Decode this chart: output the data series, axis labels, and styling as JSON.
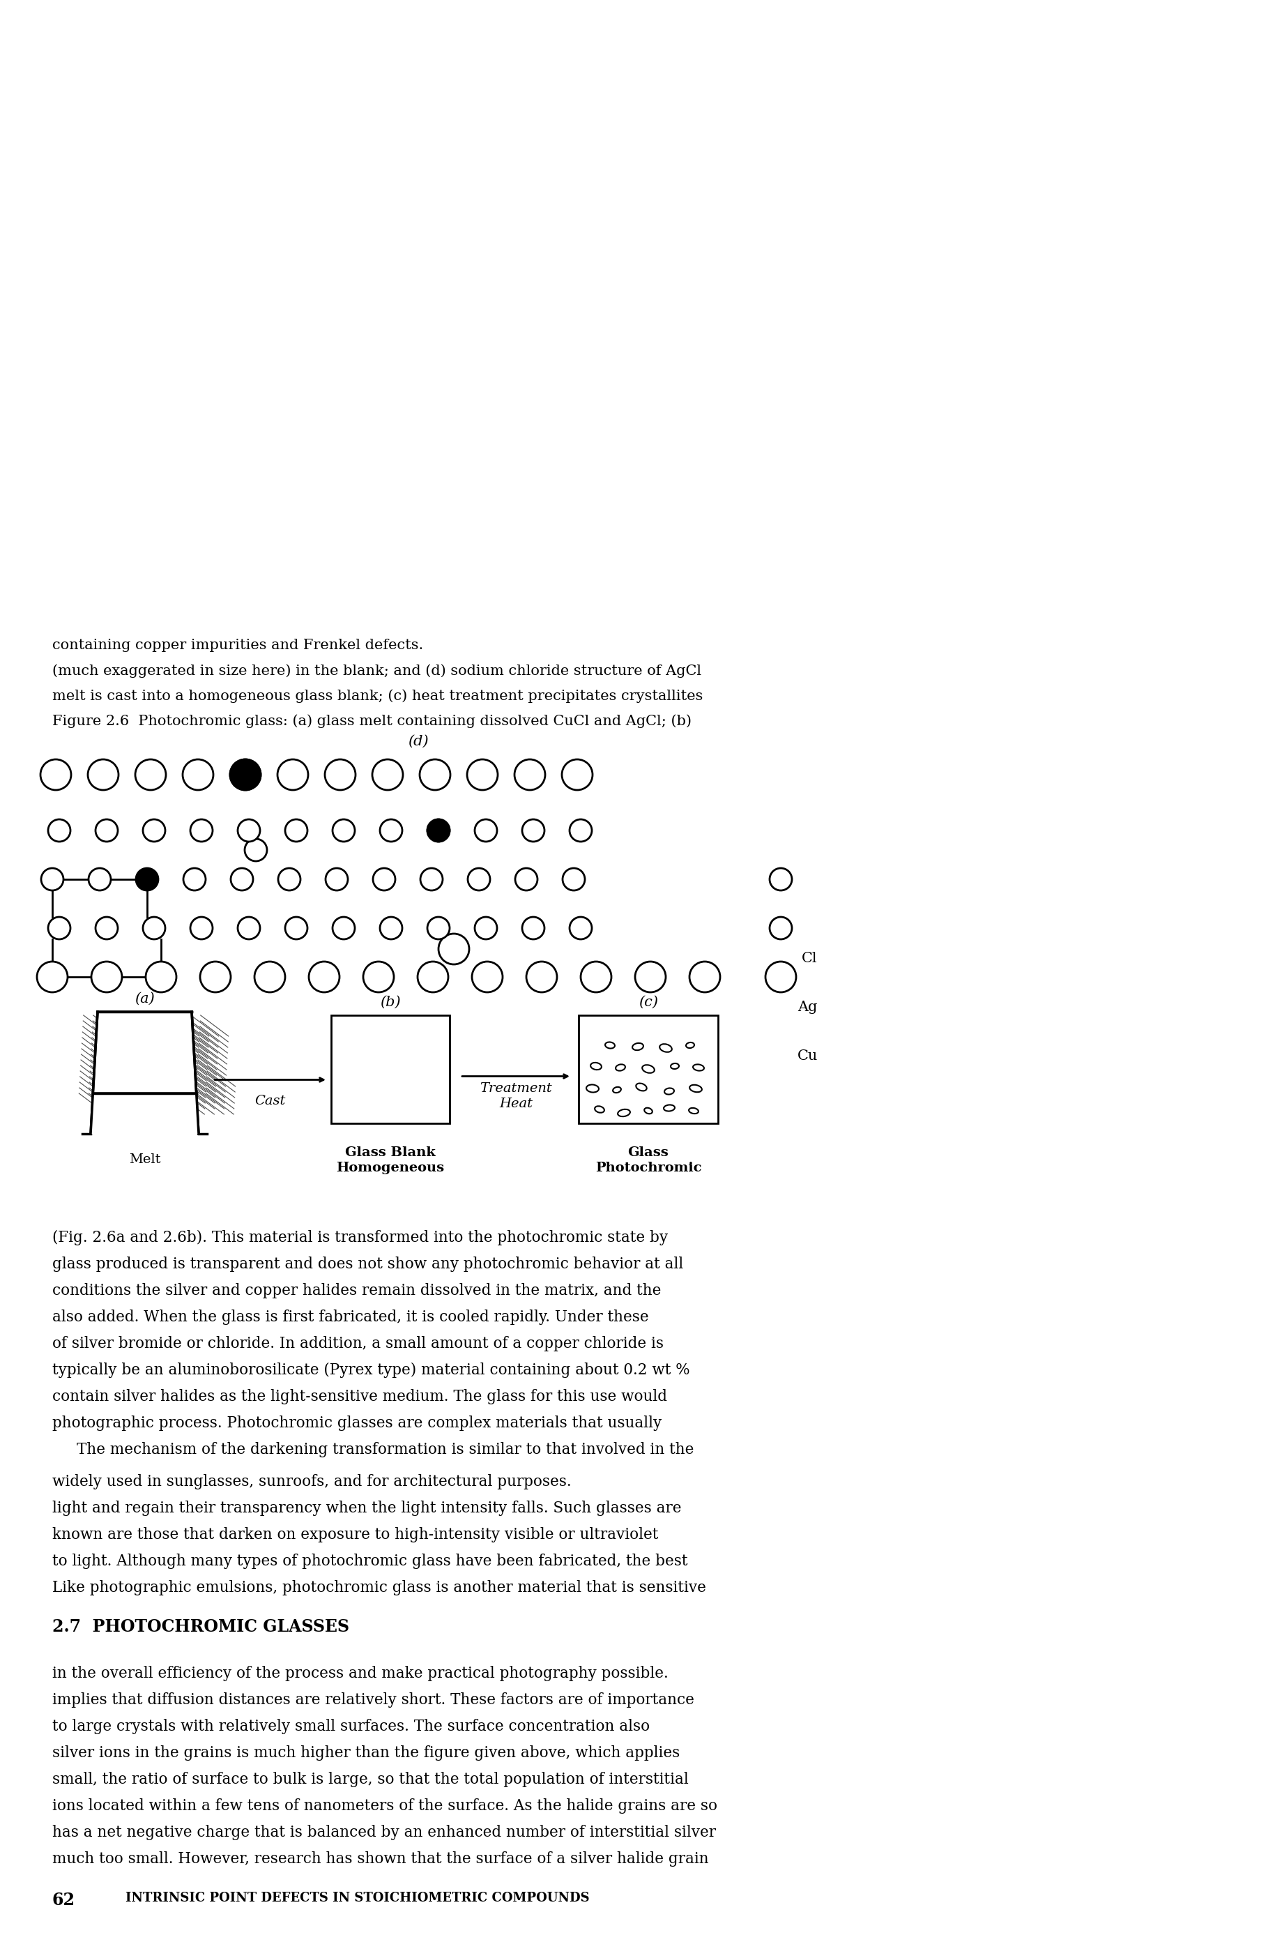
{
  "page_number": "62",
  "header": "INTRINSIC POINT DEFECTS IN STOICHIOMETRIC COMPOUNDS",
  "body_text_1": "much too small. However, research has shown that the surface of a silver halide grain\nhas a net negative charge that is balanced by an enhanced number of interstitial silver\nions located within a few tens of nanometers of the surface. As the halide grains are so\nsmall, the ratio of surface to bulk is large, so that the total population of interstitial\nsilver ions in the grains is much higher than the figure given above, which applies\nto large crystals with relatively small surfaces. The surface concentration also\nimplies that diffusion distances are relatively short. These factors are of importance\nin the overall efficiency of the process and make practical photography possible.",
  "section_title": "2.7  PHOTOCHROMIC GLASSES",
  "body_text_2": "Like photographic emulsions, photochromic glass is another material that is sensitive\nto light. Although many types of photochromic glass have been fabricated, the best\nknown are those that darken on exposure to high-intensity visible or ultraviolet\nlight and regain their transparency when the light intensity falls. Such glasses are\nwidely used in sunglasses, sunroofs, and for architectural purposes.",
  "body_text_3": "The mechanism of the darkening transformation is similar to that involved in the\nphotographic process. Photochromic glasses are complex materials that usually\ncontain silver halides as the light-sensitive medium. The glass for this use would\ntypically be an aluminoborosilicate (Pyrex type) material containing about 0.2 wt %\nof silver bromide or chloride. In addition, a small amount of a copper chloride is\nalso added. When the glass is first fabricated, it is cooled rapidly. Under these\nconditions the silver and copper halides remain dissolved in the matrix, and the\nglass produced is transparent and does not show any photochromic behavior at all\n(Fig. 2.6a and 2.6b). This material is transformed into the photochromic state by",
  "caption": "Figure 2.6  Photochromic glass: (a) glass melt containing dissolved CuCl and AgCl; (b)\nmelt is cast into a homogeneous glass blank; (c) heat treatment precipitates crystallites\n(much exaggerated in size here) in the blank; and (d) sodium chloride structure of AgCl\ncontaining copper impurities and Frenkel defects.",
  "bg_color": "#ffffff",
  "text_color": "#000000"
}
